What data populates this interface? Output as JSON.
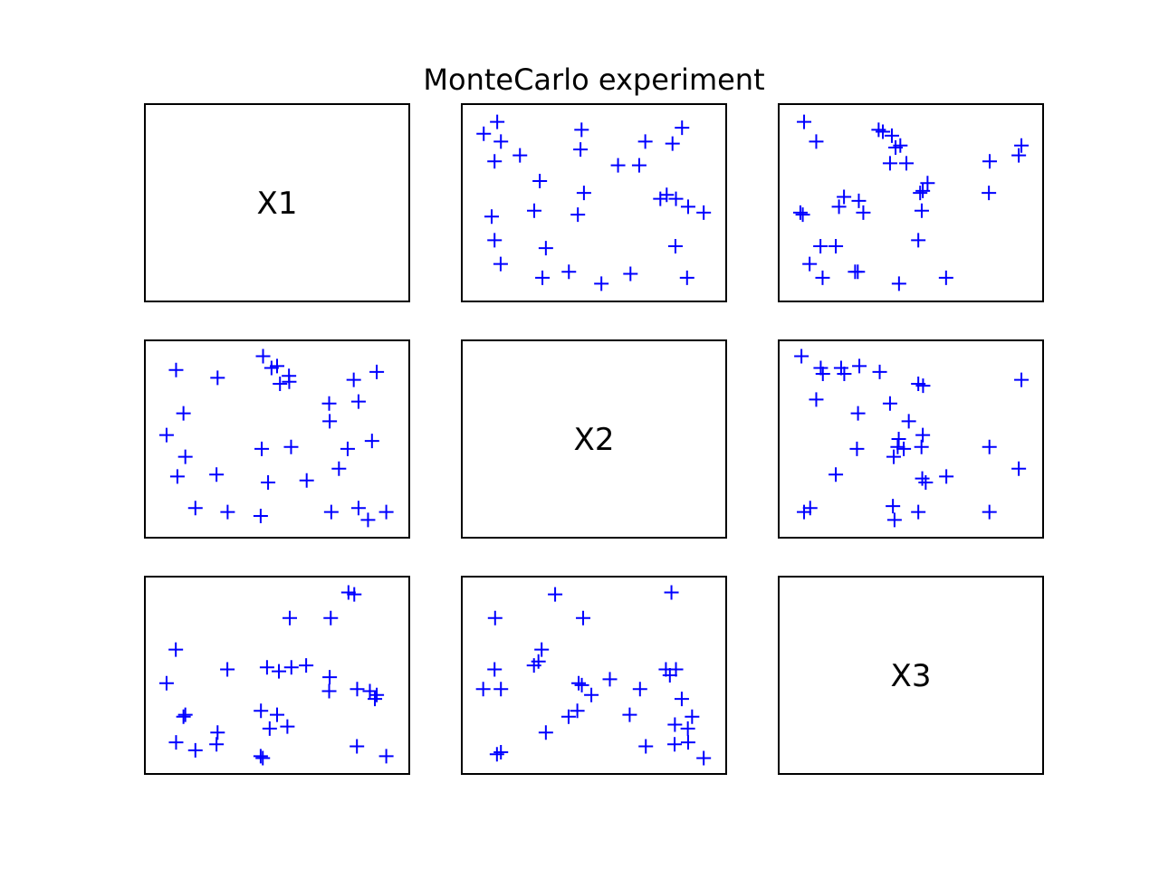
{
  "figure": {
    "title": "MonteCarlo experiment"
  },
  "colors": {
    "marker": "#0000ff",
    "frame": "#000000",
    "background": "#ffffff"
  },
  "chart_data": {
    "type": "scatter",
    "title": "MonteCarlo experiment",
    "variables": [
      "X1",
      "X2",
      "X3"
    ],
    "marker": "+",
    "grid": false,
    "axes_ticks": false,
    "domain": [
      0,
      1
    ],
    "range": [
      0,
      1
    ],
    "panels": [
      {
        "row": 0,
        "col": 0,
        "label": "X1"
      },
      {
        "row": 0,
        "col": 1,
        "x": "X2",
        "y": "X1",
        "points": [
          [
            0.134,
            0.91
          ],
          [
            0.083,
            0.85
          ],
          [
            0.148,
            0.81
          ],
          [
            0.124,
            0.71
          ],
          [
            0.22,
            0.74
          ],
          [
            0.295,
            0.61
          ],
          [
            0.453,
            0.87
          ],
          [
            0.449,
            0.77
          ],
          [
            0.591,
            0.69
          ],
          [
            0.694,
            0.81
          ],
          [
            0.797,
            0.8
          ],
          [
            0.833,
            0.88
          ],
          [
            0.671,
            0.69
          ],
          [
            0.462,
            0.55
          ],
          [
            0.274,
            0.46
          ],
          [
            0.113,
            0.43
          ],
          [
            0.439,
            0.44
          ],
          [
            0.775,
            0.54
          ],
          [
            0.81,
            0.52
          ],
          [
            0.751,
            0.52
          ],
          [
            0.856,
            0.48
          ],
          [
            0.915,
            0.45
          ],
          [
            0.124,
            0.31
          ],
          [
            0.318,
            0.27
          ],
          [
            0.808,
            0.28
          ],
          [
            0.147,
            0.19
          ],
          [
            0.305,
            0.12
          ],
          [
            0.405,
            0.15
          ],
          [
            0.528,
            0.09
          ],
          [
            0.638,
            0.14
          ],
          [
            0.852,
            0.12
          ]
        ]
      },
      {
        "row": 0,
        "col": 2,
        "x": "X3",
        "y": "X1",
        "points": [
          [
            0.096,
            0.91
          ],
          [
            0.142,
            0.81
          ],
          [
            0.378,
            0.87
          ],
          [
            0.394,
            0.86
          ],
          [
            0.428,
            0.84
          ],
          [
            0.442,
            0.78
          ],
          [
            0.46,
            0.79
          ],
          [
            0.421,
            0.7
          ],
          [
            0.483,
            0.7
          ],
          [
            0.798,
            0.71
          ],
          [
            0.908,
            0.74
          ],
          [
            0.918,
            0.79
          ],
          [
            0.563,
            0.6
          ],
          [
            0.535,
            0.55
          ],
          [
            0.545,
            0.56
          ],
          [
            0.795,
            0.55
          ],
          [
            0.247,
            0.53
          ],
          [
            0.303,
            0.51
          ],
          [
            0.228,
            0.48
          ],
          [
            0.32,
            0.45
          ],
          [
            0.541,
            0.46
          ],
          [
            0.082,
            0.45
          ],
          [
            0.091,
            0.44
          ],
          [
            0.158,
            0.28
          ],
          [
            0.216,
            0.28
          ],
          [
            0.528,
            0.31
          ],
          [
            0.117,
            0.19
          ],
          [
            0.166,
            0.12
          ],
          [
            0.289,
            0.15
          ],
          [
            0.299,
            0.15
          ],
          [
            0.455,
            0.09
          ],
          [
            0.633,
            0.12
          ]
        ]
      },
      {
        "row": 1,
        "col": 0,
        "x": "X1",
        "y": "X2",
        "points": [
          [
            0.118,
            0.85
          ],
          [
            0.275,
            0.81
          ],
          [
            0.447,
            0.92
          ],
          [
            0.479,
            0.86
          ],
          [
            0.5,
            0.87
          ],
          [
            0.511,
            0.78
          ],
          [
            0.546,
            0.79
          ],
          [
            0.545,
            0.82
          ],
          [
            0.79,
            0.8
          ],
          [
            0.877,
            0.84
          ],
          [
            0.697,
            0.68
          ],
          [
            0.808,
            0.69
          ],
          [
            0.146,
            0.63
          ],
          [
            0.699,
            0.59
          ],
          [
            0.082,
            0.52
          ],
          [
            0.153,
            0.41
          ],
          [
            0.442,
            0.45
          ],
          [
            0.553,
            0.46
          ],
          [
            0.767,
            0.45
          ],
          [
            0.859,
            0.49
          ],
          [
            0.123,
            0.31
          ],
          [
            0.271,
            0.32
          ],
          [
            0.466,
            0.28
          ],
          [
            0.612,
            0.29
          ],
          [
            0.734,
            0.35
          ],
          [
            0.191,
            0.15
          ],
          [
            0.313,
            0.13
          ],
          [
            0.438,
            0.11
          ],
          [
            0.705,
            0.13
          ],
          [
            0.808,
            0.15
          ],
          [
            0.844,
            0.09
          ],
          [
            0.913,
            0.13
          ]
        ]
      },
      {
        "row": 1,
        "col": 1,
        "label": "X2"
      },
      {
        "row": 1,
        "col": 2,
        "x": "X3",
        "y": "X2",
        "points": [
          [
            0.086,
            0.92
          ],
          [
            0.159,
            0.86
          ],
          [
            0.167,
            0.83
          ],
          [
            0.236,
            0.86
          ],
          [
            0.248,
            0.83
          ],
          [
            0.305,
            0.87
          ],
          [
            0.382,
            0.84
          ],
          [
            0.528,
            0.78
          ],
          [
            0.546,
            0.77
          ],
          [
            0.918,
            0.8
          ],
          [
            0.142,
            0.7
          ],
          [
            0.3,
            0.63
          ],
          [
            0.421,
            0.68
          ],
          [
            0.492,
            0.59
          ],
          [
            0.454,
            0.5
          ],
          [
            0.473,
            0.45
          ],
          [
            0.296,
            0.45
          ],
          [
            0.435,
            0.41
          ],
          [
            0.45,
            0.46
          ],
          [
            0.54,
            0.46
          ],
          [
            0.545,
            0.52
          ],
          [
            0.797,
            0.46
          ],
          [
            0.908,
            0.35
          ],
          [
            0.216,
            0.32
          ],
          [
            0.543,
            0.3
          ],
          [
            0.556,
            0.28
          ],
          [
            0.634,
            0.31
          ],
          [
            0.119,
            0.15
          ],
          [
            0.096,
            0.13
          ],
          [
            0.432,
            0.16
          ],
          [
            0.438,
            0.09
          ],
          [
            0.528,
            0.13
          ],
          [
            0.797,
            0.13
          ]
        ]
      },
      {
        "row": 2,
        "col": 0,
        "x": "X1",
        "y": "X3",
        "points": [
          [
            0.77,
            0.92
          ],
          [
            0.792,
            0.91
          ],
          [
            0.548,
            0.79
          ],
          [
            0.703,
            0.79
          ],
          [
            0.117,
            0.63
          ],
          [
            0.082,
            0.46
          ],
          [
            0.312,
            0.53
          ],
          [
            0.462,
            0.54
          ],
          [
            0.507,
            0.52
          ],
          [
            0.554,
            0.54
          ],
          [
            0.61,
            0.55
          ],
          [
            0.699,
            0.49
          ],
          [
            0.697,
            0.42
          ],
          [
            0.803,
            0.43
          ],
          [
            0.851,
            0.42
          ],
          [
            0.87,
            0.38
          ],
          [
            0.877,
            0.4
          ],
          [
            0.146,
            0.29
          ],
          [
            0.153,
            0.3
          ],
          [
            0.439,
            0.32
          ],
          [
            0.5,
            0.3
          ],
          [
            0.118,
            0.16
          ],
          [
            0.191,
            0.12
          ],
          [
            0.271,
            0.15
          ],
          [
            0.275,
            0.21
          ],
          [
            0.472,
            0.23
          ],
          [
            0.539,
            0.24
          ],
          [
            0.438,
            0.09
          ],
          [
            0.446,
            0.08
          ],
          [
            0.802,
            0.14
          ],
          [
            0.913,
            0.09
          ]
        ]
      },
      {
        "row": 2,
        "col": 1,
        "x": "X2",
        "y": "X3",
        "points": [
          [
            0.353,
            0.91
          ],
          [
            0.793,
            0.92
          ],
          [
            0.126,
            0.79
          ],
          [
            0.459,
            0.79
          ],
          [
            0.302,
            0.63
          ],
          [
            0.273,
            0.55
          ],
          [
            0.29,
            0.57
          ],
          [
            0.124,
            0.53
          ],
          [
            0.442,
            0.46
          ],
          [
            0.49,
            0.4
          ],
          [
            0.56,
            0.48
          ],
          [
            0.81,
            0.53
          ],
          [
            0.772,
            0.53
          ],
          [
            0.787,
            0.5
          ],
          [
            0.081,
            0.43
          ],
          [
            0.148,
            0.43
          ],
          [
            0.454,
            0.45
          ],
          [
            0.674,
            0.43
          ],
          [
            0.832,
            0.38
          ],
          [
            0.437,
            0.32
          ],
          [
            0.404,
            0.29
          ],
          [
            0.635,
            0.3
          ],
          [
            0.871,
            0.29
          ],
          [
            0.806,
            0.25
          ],
          [
            0.855,
            0.23
          ],
          [
            0.318,
            0.21
          ],
          [
            0.696,
            0.14
          ],
          [
            0.805,
            0.15
          ],
          [
            0.856,
            0.16
          ],
          [
            0.133,
            0.1
          ],
          [
            0.148,
            0.11
          ],
          [
            0.915,
            0.08
          ]
        ]
      },
      {
        "row": 2,
        "col": 2,
        "label": "X3"
      }
    ]
  }
}
